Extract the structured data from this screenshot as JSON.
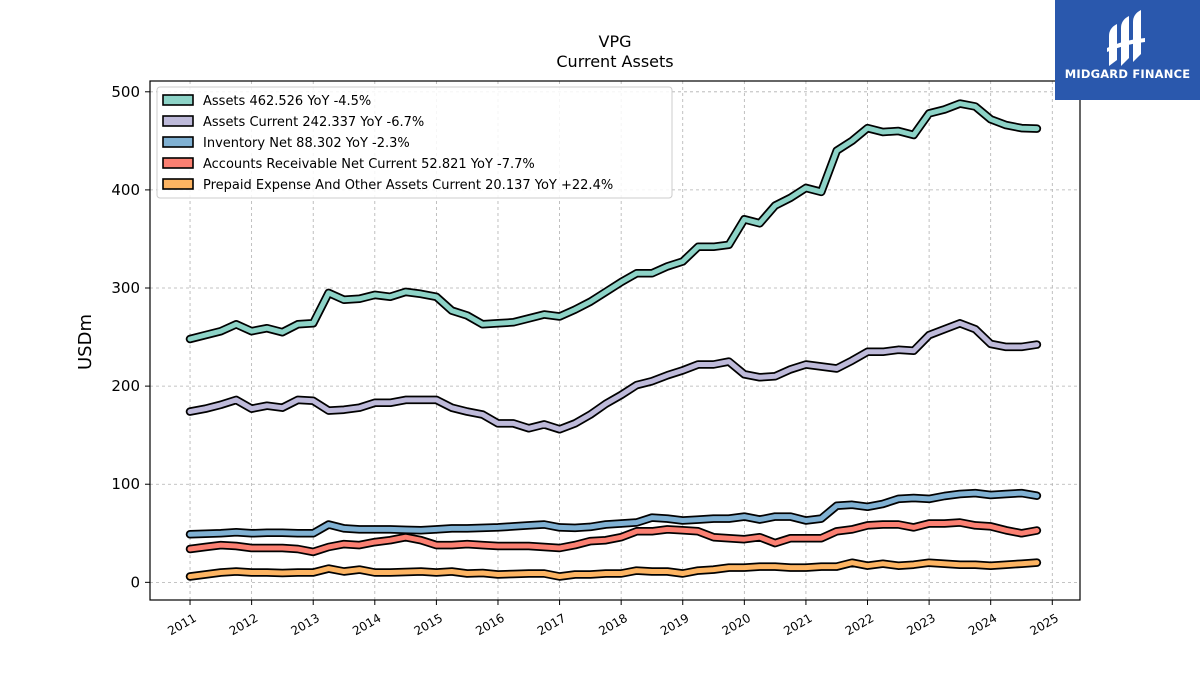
{
  "brand": {
    "name": "MIDGARD FINANCE",
    "bg_color": "#2a58ad"
  },
  "chart_data": {
    "type": "line",
    "title": "VPG",
    "subtitle": "Current  Assets",
    "ylabel": "USDm",
    "xlabel": "",
    "ylim": [
      -18,
      511
    ],
    "xlim": [
      2010.35,
      2025.45
    ],
    "yticks": [
      0,
      100,
      200,
      300,
      400,
      500
    ],
    "xticks": [
      "2011",
      "2012",
      "2013",
      "2014",
      "2015",
      "2016",
      "2017",
      "2018",
      "2019",
      "2020",
      "2021",
      "2022",
      "2023",
      "2024",
      "2025"
    ],
    "grid": true,
    "legend_position": "top-left",
    "series": [
      {
        "name": "Assets",
        "legend": "Assets  462.526 YoY -4.5%",
        "color": "#8dd3c7",
        "points": [
          [
            2011.0,
            248
          ],
          [
            2011.25,
            252
          ],
          [
            2011.5,
            256
          ],
          [
            2011.75,
            263
          ],
          [
            2012.0,
            256
          ],
          [
            2012.25,
            259
          ],
          [
            2012.5,
            255
          ],
          [
            2012.75,
            263
          ],
          [
            2013.0,
            264
          ],
          [
            2013.25,
            295
          ],
          [
            2013.5,
            288
          ],
          [
            2013.75,
            289
          ],
          [
            2014.0,
            293
          ],
          [
            2014.25,
            291
          ],
          [
            2014.5,
            296
          ],
          [
            2014.75,
            294
          ],
          [
            2015.0,
            291
          ],
          [
            2015.25,
            277
          ],
          [
            2015.5,
            272
          ],
          [
            2015.75,
            263
          ],
          [
            2016.0,
            264
          ],
          [
            2016.25,
            265
          ],
          [
            2016.5,
            269
          ],
          [
            2016.75,
            273
          ],
          [
            2017.0,
            271
          ],
          [
            2017.25,
            278
          ],
          [
            2017.5,
            286
          ],
          [
            2017.75,
            296
          ],
          [
            2018.0,
            306
          ],
          [
            2018.25,
            315
          ],
          [
            2018.5,
            315
          ],
          [
            2018.75,
            322
          ],
          [
            2019.0,
            327
          ],
          [
            2019.25,
            342
          ],
          [
            2019.5,
            342
          ],
          [
            2019.75,
            344
          ],
          [
            2020.0,
            370
          ],
          [
            2020.25,
            366
          ],
          [
            2020.5,
            384
          ],
          [
            2020.75,
            392
          ],
          [
            2021.0,
            402
          ],
          [
            2021.25,
            398
          ],
          [
            2021.5,
            440
          ],
          [
            2021.75,
            450
          ],
          [
            2022.0,
            463
          ],
          [
            2022.25,
            459
          ],
          [
            2022.5,
            460
          ],
          [
            2022.75,
            456
          ],
          [
            2023.0,
            478
          ],
          [
            2023.25,
            482
          ],
          [
            2023.5,
            488
          ],
          [
            2023.75,
            485
          ],
          [
            2024.0,
            472
          ],
          [
            2024.25,
            466
          ],
          [
            2024.5,
            463
          ],
          [
            2024.75,
            462.526
          ]
        ]
      },
      {
        "name": "Assets Current",
        "legend": "Assets Current  242.337 YoY -6.7%",
        "color": "#bebada",
        "points": [
          [
            2011.0,
            174
          ],
          [
            2011.25,
            177
          ],
          [
            2011.5,
            181
          ],
          [
            2011.75,
            186
          ],
          [
            2012.0,
            177
          ],
          [
            2012.25,
            180
          ],
          [
            2012.5,
            178
          ],
          [
            2012.75,
            186
          ],
          [
            2013.0,
            185
          ],
          [
            2013.25,
            175
          ],
          [
            2013.5,
            176
          ],
          [
            2013.75,
            178
          ],
          [
            2014.0,
            183
          ],
          [
            2014.25,
            183
          ],
          [
            2014.5,
            186
          ],
          [
            2014.75,
            186
          ],
          [
            2015.0,
            186
          ],
          [
            2015.25,
            178
          ],
          [
            2015.5,
            174
          ],
          [
            2015.75,
            171
          ],
          [
            2016.0,
            162
          ],
          [
            2016.25,
            162
          ],
          [
            2016.5,
            157
          ],
          [
            2016.75,
            161
          ],
          [
            2017.0,
            156
          ],
          [
            2017.25,
            162
          ],
          [
            2017.5,
            171
          ],
          [
            2017.75,
            182
          ],
          [
            2018.0,
            191
          ],
          [
            2018.25,
            201
          ],
          [
            2018.5,
            205
          ],
          [
            2018.75,
            211
          ],
          [
            2019.0,
            216
          ],
          [
            2019.25,
            222
          ],
          [
            2019.5,
            222
          ],
          [
            2019.75,
            225
          ],
          [
            2020.0,
            212
          ],
          [
            2020.25,
            209
          ],
          [
            2020.5,
            210
          ],
          [
            2020.75,
            217
          ],
          [
            2021.0,
            222
          ],
          [
            2021.25,
            220
          ],
          [
            2021.5,
            218
          ],
          [
            2021.75,
            226
          ],
          [
            2022.0,
            235
          ],
          [
            2022.25,
            235
          ],
          [
            2022.5,
            237
          ],
          [
            2022.75,
            236
          ],
          [
            2023.0,
            252
          ],
          [
            2023.25,
            258
          ],
          [
            2023.5,
            264
          ],
          [
            2023.75,
            258
          ],
          [
            2024.0,
            243
          ],
          [
            2024.25,
            240
          ],
          [
            2024.5,
            240
          ],
          [
            2024.75,
            242.337
          ]
        ]
      },
      {
        "name": "Inventory Net",
        "legend": "Inventory Net  88.302 YoY -2.3%",
        "color": "#80b1d3",
        "points": [
          [
            2011.0,
            49
          ],
          [
            2011.25,
            49.5
          ],
          [
            2011.5,
            50
          ],
          [
            2011.75,
            51
          ],
          [
            2012.0,
            50
          ],
          [
            2012.25,
            50.5
          ],
          [
            2012.5,
            50.5
          ],
          [
            2012.75,
            50
          ],
          [
            2013.0,
            50
          ],
          [
            2013.25,
            59
          ],
          [
            2013.5,
            55
          ],
          [
            2013.75,
            54
          ],
          [
            2014.0,
            54
          ],
          [
            2014.25,
            54
          ],
          [
            2014.5,
            53.5
          ],
          [
            2014.75,
            53
          ],
          [
            2015.0,
            54
          ],
          [
            2015.25,
            55
          ],
          [
            2015.5,
            55
          ],
          [
            2015.75,
            55.5
          ],
          [
            2016.0,
            56
          ],
          [
            2016.25,
            57
          ],
          [
            2016.5,
            58
          ],
          [
            2016.75,
            59
          ],
          [
            2017.0,
            56
          ],
          [
            2017.25,
            55.5
          ],
          [
            2017.5,
            56.5
          ],
          [
            2017.75,
            59
          ],
          [
            2018.0,
            60
          ],
          [
            2018.25,
            61
          ],
          [
            2018.5,
            66
          ],
          [
            2018.75,
            65
          ],
          [
            2019.0,
            63
          ],
          [
            2019.25,
            64
          ],
          [
            2019.5,
            65
          ],
          [
            2019.75,
            65
          ],
          [
            2020.0,
            67
          ],
          [
            2020.25,
            64
          ],
          [
            2020.5,
            67
          ],
          [
            2020.75,
            67
          ],
          [
            2021.0,
            63
          ],
          [
            2021.25,
            65
          ],
          [
            2021.5,
            78
          ],
          [
            2021.75,
            79
          ],
          [
            2022.0,
            77
          ],
          [
            2022.25,
            80
          ],
          [
            2022.5,
            85
          ],
          [
            2022.75,
            86
          ],
          [
            2023.0,
            85
          ],
          [
            2023.25,
            88
          ],
          [
            2023.5,
            90
          ],
          [
            2023.75,
            91
          ],
          [
            2024.0,
            89
          ],
          [
            2024.25,
            90
          ],
          [
            2024.5,
            91
          ],
          [
            2024.75,
            88.302
          ]
        ]
      },
      {
        "name": "Accounts Receivable Net Current",
        "legend": "Accounts Receivable Net Current  52.821 YoY -7.7%",
        "color": "#fb8072",
        "points": [
          [
            2011.0,
            34
          ],
          [
            2011.25,
            36
          ],
          [
            2011.5,
            38
          ],
          [
            2011.75,
            37
          ],
          [
            2012.0,
            35
          ],
          [
            2012.25,
            35
          ],
          [
            2012.5,
            35
          ],
          [
            2012.75,
            34
          ],
          [
            2013.0,
            31
          ],
          [
            2013.25,
            36
          ],
          [
            2013.5,
            39
          ],
          [
            2013.75,
            38
          ],
          [
            2014.0,
            41
          ],
          [
            2014.25,
            43
          ],
          [
            2014.5,
            46
          ],
          [
            2014.75,
            43
          ],
          [
            2015.0,
            38
          ],
          [
            2015.25,
            38
          ],
          [
            2015.5,
            39
          ],
          [
            2015.75,
            38
          ],
          [
            2016.0,
            37
          ],
          [
            2016.25,
            37
          ],
          [
            2016.5,
            37
          ],
          [
            2016.75,
            36
          ],
          [
            2017.0,
            35
          ],
          [
            2017.25,
            38
          ],
          [
            2017.5,
            42
          ],
          [
            2017.75,
            43
          ],
          [
            2018.0,
            46
          ],
          [
            2018.25,
            52
          ],
          [
            2018.5,
            52
          ],
          [
            2018.75,
            54
          ],
          [
            2019.0,
            53
          ],
          [
            2019.25,
            52
          ],
          [
            2019.5,
            46
          ],
          [
            2019.75,
            45
          ],
          [
            2020.0,
            44
          ],
          [
            2020.25,
            46
          ],
          [
            2020.5,
            40
          ],
          [
            2020.75,
            45
          ],
          [
            2021.0,
            45
          ],
          [
            2021.25,
            45
          ],
          [
            2021.5,
            52
          ],
          [
            2021.75,
            54
          ],
          [
            2022.0,
            58
          ],
          [
            2022.25,
            59
          ],
          [
            2022.5,
            59
          ],
          [
            2022.75,
            56
          ],
          [
            2023.0,
            60
          ],
          [
            2023.25,
            60
          ],
          [
            2023.5,
            61
          ],
          [
            2023.75,
            58
          ],
          [
            2024.0,
            57
          ],
          [
            2024.25,
            53
          ],
          [
            2024.5,
            50
          ],
          [
            2024.75,
            52.821
          ]
        ]
      },
      {
        "name": "Prepaid Expense And Other Assets Current",
        "legend": "Prepaid Expense And Other Assets Current  20.137 YoY +22.4%",
        "color": "#fdb462",
        "points": [
          [
            2011.0,
            6
          ],
          [
            2011.25,
            8
          ],
          [
            2011.5,
            10
          ],
          [
            2011.75,
            11
          ],
          [
            2012.0,
            10
          ],
          [
            2012.25,
            10
          ],
          [
            2012.5,
            9.5
          ],
          [
            2012.75,
            10
          ],
          [
            2013.0,
            10
          ],
          [
            2013.25,
            14
          ],
          [
            2013.5,
            11
          ],
          [
            2013.75,
            13
          ],
          [
            2014.0,
            10
          ],
          [
            2014.25,
            10
          ],
          [
            2014.5,
            10.5
          ],
          [
            2014.75,
            11
          ],
          [
            2015.0,
            10
          ],
          [
            2015.25,
            11
          ],
          [
            2015.5,
            9
          ],
          [
            2015.75,
            9.5
          ],
          [
            2016.0,
            8
          ],
          [
            2016.25,
            8.5
          ],
          [
            2016.5,
            9
          ],
          [
            2016.75,
            9
          ],
          [
            2017.0,
            6
          ],
          [
            2017.25,
            8
          ],
          [
            2017.5,
            8
          ],
          [
            2017.75,
            9
          ],
          [
            2018.0,
            9
          ],
          [
            2018.25,
            12
          ],
          [
            2018.5,
            11
          ],
          [
            2018.75,
            11
          ],
          [
            2019.0,
            9
          ],
          [
            2019.25,
            12
          ],
          [
            2019.5,
            13
          ],
          [
            2019.75,
            15
          ],
          [
            2020.0,
            15
          ],
          [
            2020.25,
            16
          ],
          [
            2020.5,
            16
          ],
          [
            2020.75,
            15
          ],
          [
            2021.0,
            15
          ],
          [
            2021.25,
            16
          ],
          [
            2021.5,
            16
          ],
          [
            2021.75,
            20
          ],
          [
            2022.0,
            17
          ],
          [
            2022.25,
            19
          ],
          [
            2022.5,
            17
          ],
          [
            2022.75,
            18
          ],
          [
            2023.0,
            20
          ],
          [
            2023.25,
            19
          ],
          [
            2023.5,
            18
          ],
          [
            2023.75,
            18
          ],
          [
            2024.0,
            17
          ],
          [
            2024.25,
            18
          ],
          [
            2024.5,
            19
          ],
          [
            2024.75,
            20.137
          ]
        ]
      }
    ]
  }
}
